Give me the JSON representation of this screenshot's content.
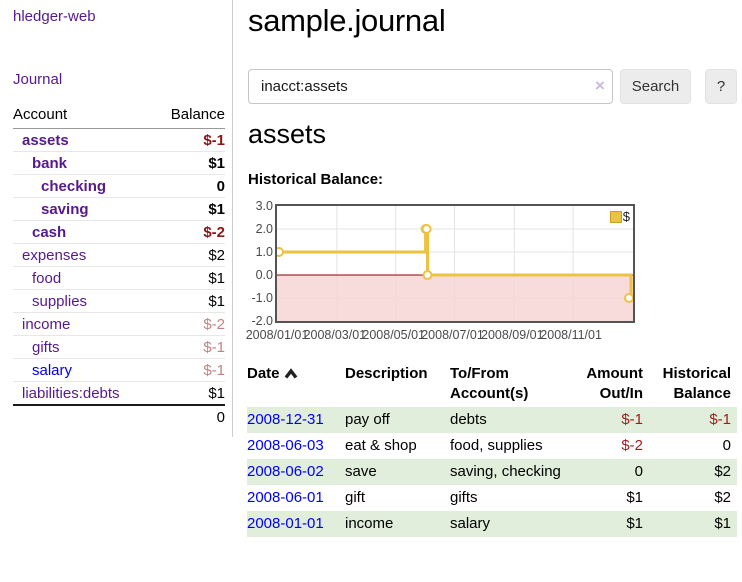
{
  "app": {
    "brand": "hledger-web",
    "nav_journal": "Journal"
  },
  "sidebar": {
    "headers": {
      "account": "Account",
      "balance": "Balance"
    },
    "accounts": [
      {
        "name": "assets",
        "balance": "$-1"
      },
      {
        "name": "bank",
        "balance": "$1"
      },
      {
        "name": "checking",
        "balance": "0"
      },
      {
        "name": "saving",
        "balance": "$1"
      },
      {
        "name": "cash",
        "balance": "$-2"
      },
      {
        "name": "expenses",
        "balance": "$2"
      },
      {
        "name": "food",
        "balance": "$1"
      },
      {
        "name": "supplies",
        "balance": "$1"
      },
      {
        "name": "income",
        "balance": "$-2"
      },
      {
        "name": "gifts",
        "balance": "$-1"
      },
      {
        "name": "salary",
        "balance": "$-1"
      },
      {
        "name": "liabilities:debts",
        "balance": "$1"
      }
    ],
    "total": "0"
  },
  "main": {
    "title": "sample.journal",
    "search": {
      "value": "inacct:assets",
      "clear": "×",
      "search_button": "Search",
      "help_button": "?"
    },
    "account_heading": "assets",
    "section_label": "Historical Balance:"
  },
  "register": {
    "headers": {
      "date": "Date",
      "description": "Description",
      "tofrom": "To/From Account(s)",
      "amount": "Amount Out/In",
      "balance": "Historical Balance"
    },
    "rows": [
      {
        "date": "2008-12-31",
        "description": "pay off",
        "tofrom": "debts",
        "amount": "$-1",
        "balance": "$-1"
      },
      {
        "date": "2008-06-03",
        "description": "eat & shop",
        "tofrom": "food, supplies",
        "amount": "$-2",
        "balance": "0"
      },
      {
        "date": "2008-06-02",
        "description": "save",
        "tofrom": "saving, checking",
        "amount": "0",
        "balance": "$2"
      },
      {
        "date": "2008-06-01",
        "description": "gift",
        "tofrom": "gifts",
        "amount": "$1",
        "balance": "$2"
      },
      {
        "date": "2008-01-01",
        "description": "income",
        "tofrom": "salary",
        "amount": "$1",
        "balance": "$1"
      }
    ]
  },
  "chart_data": {
    "type": "line",
    "title": "Historical Balance:",
    "style": "step-after",
    "x_range": [
      "2008-01-01",
      "2008-12-31"
    ],
    "ylim": [
      -2,
      3
    ],
    "yticks": [
      "3.0",
      "2.0",
      "1.0",
      "0.0",
      "-1.0",
      "-2.0"
    ],
    "xticks": [
      {
        "label": "2008/01/01",
        "date": "2008-01-01"
      },
      {
        "label": "2008/03/01",
        "date": "2008-03-01"
      },
      {
        "label": "2008/05/01",
        "date": "2008-05-01"
      },
      {
        "label": "2008/07/01",
        "date": "2008-07-01"
      },
      {
        "label": "2008/09/01",
        "date": "2008-09-01"
      },
      {
        "label": "2008/11/01",
        "date": "2008-11-01"
      }
    ],
    "series": [
      {
        "name": "$",
        "color": "#edc240",
        "points": [
          [
            "2008-01-01",
            1
          ],
          [
            "2008-06-01",
            2
          ],
          [
            "2008-06-02",
            2
          ],
          [
            "2008-06-03",
            0
          ],
          [
            "2008-12-31",
            -1
          ]
        ]
      }
    ],
    "grid": true,
    "legend_position": "top-right",
    "negative_region_color": "#f6d3d3",
    "zero_line_color": "#8b0000"
  }
}
